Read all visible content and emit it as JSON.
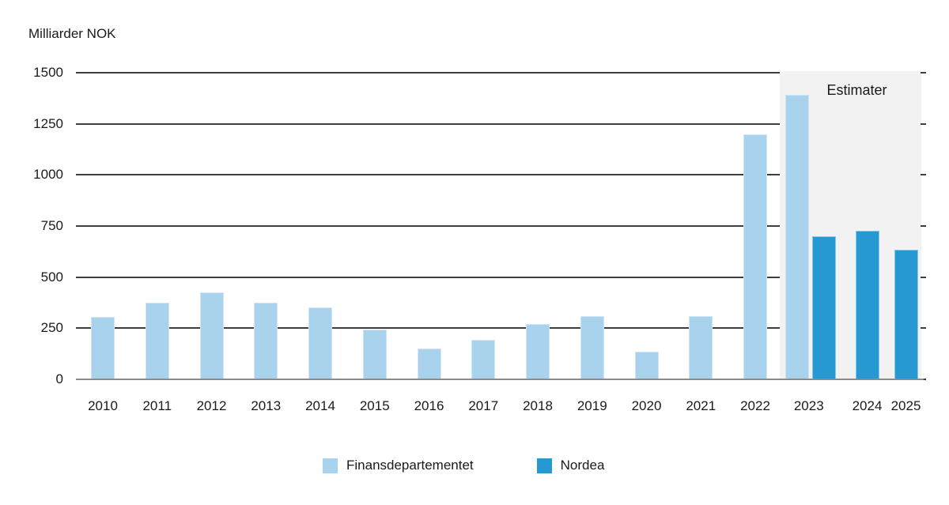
{
  "title": "Milliarder NOK",
  "estimate_region_label": "Estimater",
  "colors": {
    "finansdepartementet": "#a9d2ec",
    "nordea": "#2698d2",
    "estimate_background": "#f2f2f3",
    "gridline": "#3d3d3d",
    "baseline": "#8c8c8c",
    "text": "#1a1a1a"
  },
  "y_axis": {
    "ticks": [
      1500,
      1250,
      1000,
      750,
      500,
      250,
      0
    ]
  },
  "legend": {
    "items": [
      {
        "label": "Finansdepartementet",
        "color": "#a9d2ec"
      },
      {
        "label": "Nordea",
        "color": "#2698d2"
      }
    ]
  },
  "chart_data": {
    "type": "bar",
    "title": "Milliarder NOK",
    "ylabel": "Milliarder NOK",
    "ylim": [
      0,
      1500
    ],
    "y_tick_step": 250,
    "grid": true,
    "legend_position": "bottom",
    "categories": [
      "2010",
      "2011",
      "2012",
      "2013",
      "2014",
      "2015",
      "2016",
      "2017",
      "2018",
      "2019",
      "2020",
      "2021",
      "2022",
      "2023",
      "2024",
      "2025"
    ],
    "series": [
      {
        "name": "Finansdepartementet",
        "color": "#a9d2ec",
        "values": [
          305,
          375,
          425,
          375,
          350,
          245,
          150,
          195,
          270,
          310,
          135,
          310,
          1200,
          1390,
          null,
          null
        ]
      },
      {
        "name": "Nordea",
        "color": "#2698d2",
        "values": [
          null,
          null,
          null,
          null,
          null,
          null,
          null,
          null,
          null,
          null,
          null,
          null,
          null,
          700,
          725,
          635
        ]
      }
    ],
    "annotation": {
      "label": "Estimater",
      "applies_to_categories": [
        "2023",
        "2024",
        "2025"
      ]
    }
  }
}
